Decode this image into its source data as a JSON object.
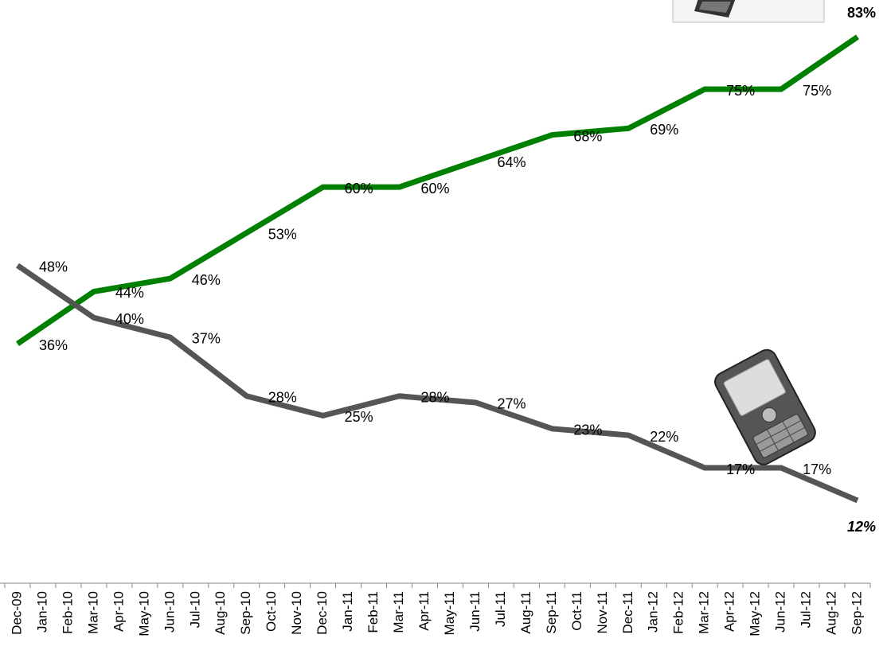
{
  "chart_data": {
    "type": "line",
    "categories": [
      "Dec-09",
      "Jan-10",
      "Feb-10",
      "Mar-10",
      "Apr-10",
      "May-10",
      "Jun-10",
      "Jul-10",
      "Aug-10",
      "Sep-10",
      "Oct-10",
      "Nov-10",
      "Dec-10",
      "Jan-11",
      "Feb-11",
      "Mar-11",
      "Apr-11",
      "May-11",
      "Jun-11",
      "Jul-11",
      "Aug-11",
      "Sep-11",
      "Oct-11",
      "Nov-11",
      "Dec-11",
      "Jan-12",
      "Feb-12",
      "Mar-12",
      "Apr-12",
      "May-12",
      "Jun-12",
      "Jul-12",
      "Aug-12",
      "Sep-12"
    ],
    "ylim": [
      10,
      85
    ],
    "series": [
      {
        "color": "#008000",
        "x": [
          "Dec-09",
          "Mar-10",
          "Jun-10",
          "Sep-10",
          "Dec-10",
          "Mar-11",
          "Jun-11",
          "Sep-11",
          "Dec-11",
          "Mar-12",
          "Jun-12",
          "Sep-12"
        ],
        "values": [
          36,
          44,
          46,
          53,
          60,
          60,
          64,
          68,
          69,
          75,
          75,
          83
        ],
        "value_labels": [
          "36%",
          "44%",
          "46%",
          "53%",
          "60%",
          "60%",
          "64%",
          "68%",
          "69%",
          "75%",
          "75%",
          "83%"
        ]
      },
      {
        "color": "#555555",
        "x": [
          "Dec-09",
          "Mar-10",
          "Jun-10",
          "Sep-10",
          "Dec-10",
          "Mar-11",
          "Jun-11",
          "Sep-11",
          "Dec-11",
          "Mar-12",
          "Jun-12",
          "Sep-12"
        ],
        "values": [
          48,
          40,
          37,
          28,
          25,
          28,
          27,
          23,
          22,
          17,
          17,
          12
        ],
        "value_labels": [
          "48%",
          "40%",
          "37%",
          "28%",
          "25%",
          "28%",
          "27%",
          "23%",
          "22%",
          "17%",
          "17%",
          "12%"
        ]
      }
    ]
  }
}
